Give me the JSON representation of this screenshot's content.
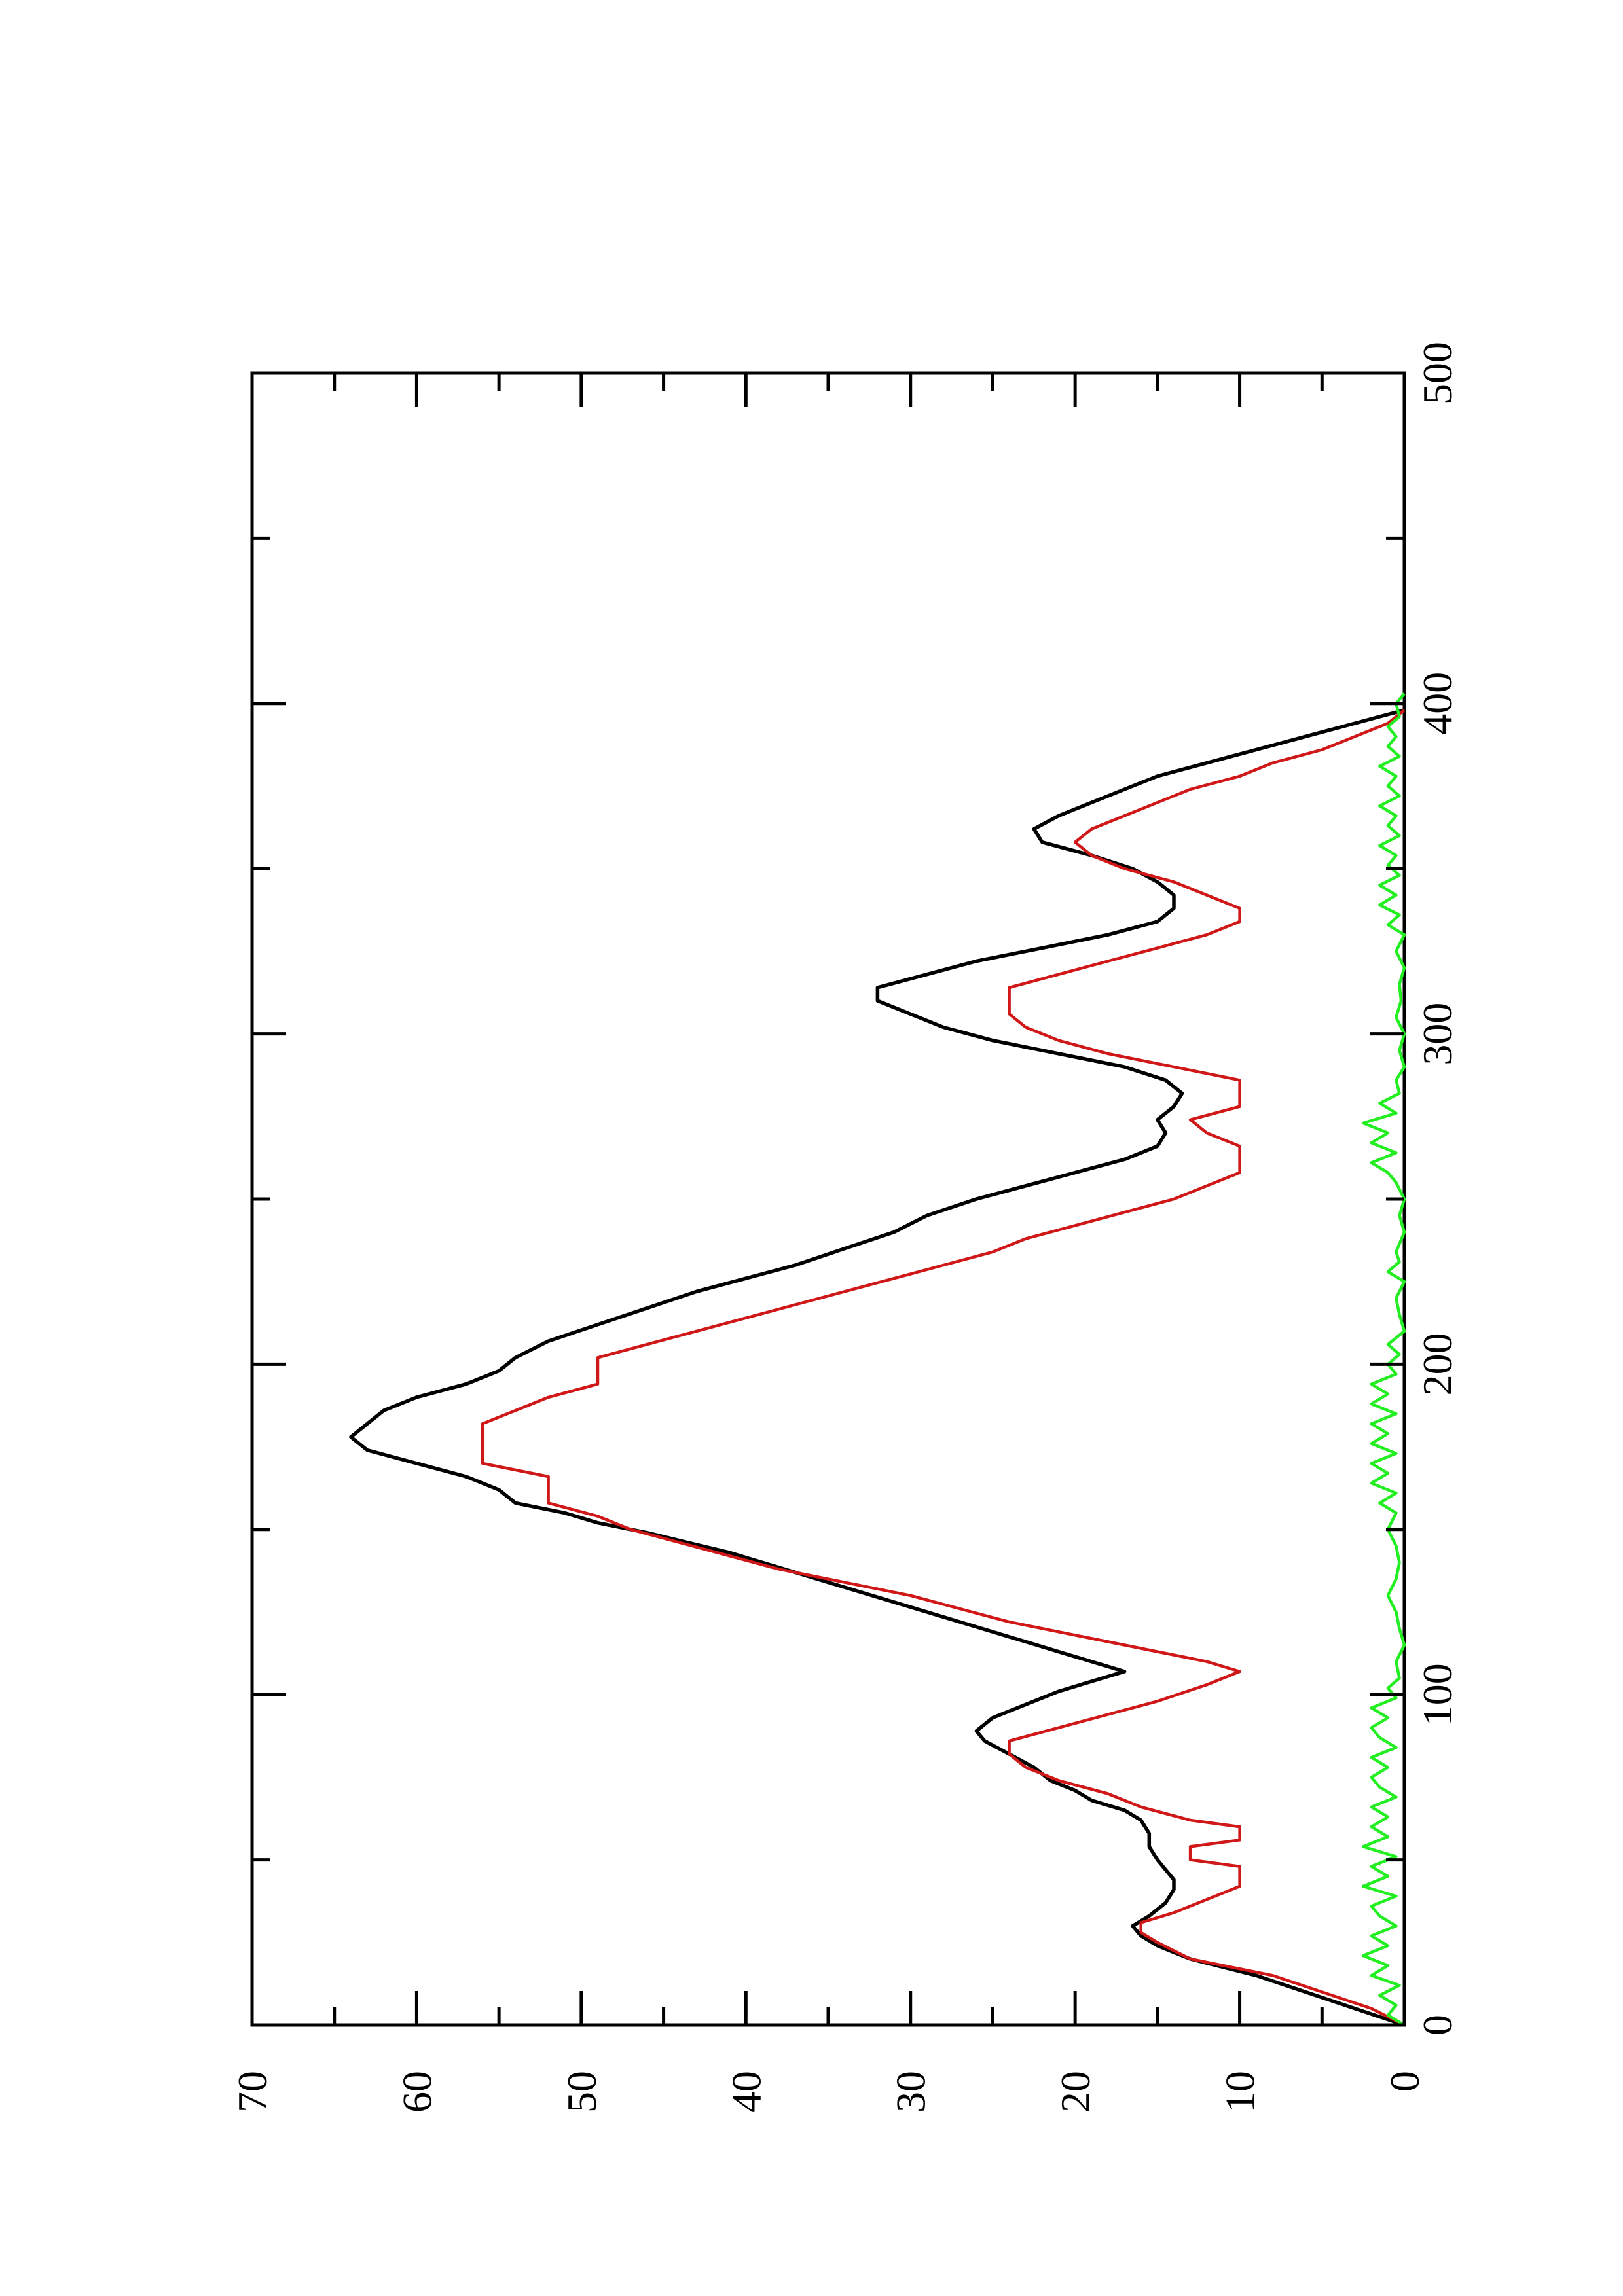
{
  "chart_data": {
    "type": "line",
    "orientation": "rotated-90-ccw",
    "title": "",
    "xlabel": "",
    "ylabel": "",
    "xlim": [
      0,
      500
    ],
    "ylim": [
      0,
      70
    ],
    "x_ticks": [
      "0",
      "100",
      "200",
      "300",
      "400",
      "500"
    ],
    "y_ticks": [
      "0",
      "10",
      "20",
      "30",
      "40",
      "50",
      "60",
      "70"
    ],
    "grid": false,
    "legend": "none",
    "series": [
      {
        "color": "#000000",
        "style": "solid",
        "points": [
          [
            0,
            0
          ],
          [
            5,
            3
          ],
          [
            10,
            6
          ],
          [
            15,
            9
          ],
          [
            20,
            13
          ],
          [
            24,
            15
          ],
          [
            27,
            16
          ],
          [
            30,
            16.5
          ],
          [
            33,
            15.5
          ],
          [
            37,
            14.5
          ],
          [
            41,
            14
          ],
          [
            44,
            14
          ],
          [
            47,
            14.5
          ],
          [
            50,
            15
          ],
          [
            54,
            15.5
          ],
          [
            58,
            15.5
          ],
          [
            62,
            16
          ],
          [
            65,
            17
          ],
          [
            68,
            19
          ],
          [
            71,
            20
          ],
          [
            74,
            21.5
          ],
          [
            78,
            22.5
          ],
          [
            82,
            24
          ],
          [
            86,
            25.5
          ],
          [
            89,
            26
          ],
          [
            93,
            25
          ],
          [
            97,
            23
          ],
          [
            101,
            21
          ],
          [
            104,
            19
          ],
          [
            107,
            17
          ],
          [
            110,
            19
          ],
          [
            113,
            21
          ],
          [
            116,
            23
          ],
          [
            119,
            25
          ],
          [
            122,
            27
          ],
          [
            125,
            29
          ],
          [
            128,
            31
          ],
          [
            131,
            33
          ],
          [
            134,
            35
          ],
          [
            137,
            37
          ],
          [
            140,
            39
          ],
          [
            143,
            41
          ],
          [
            146,
            43.5
          ],
          [
            149,
            46
          ],
          [
            152,
            49
          ],
          [
            155,
            51
          ],
          [
            158,
            54
          ],
          [
            162,
            55
          ],
          [
            166,
            57
          ],
          [
            170,
            60
          ],
          [
            174,
            63
          ],
          [
            178,
            64
          ],
          [
            182,
            63
          ],
          [
            186,
            62
          ],
          [
            190,
            60
          ],
          [
            194,
            57
          ],
          [
            198,
            55
          ],
          [
            202,
            54
          ],
          [
            207,
            52
          ],
          [
            212,
            49
          ],
          [
            217,
            46
          ],
          [
            222,
            43
          ],
          [
            226,
            40
          ],
          [
            230,
            37
          ],
          [
            235,
            34
          ],
          [
            240,
            31
          ],
          [
            245,
            29
          ],
          [
            250,
            26
          ],
          [
            254,
            23
          ],
          [
            258,
            20
          ],
          [
            262,
            17
          ],
          [
            266,
            15
          ],
          [
            270,
            14.5
          ],
          [
            274,
            15
          ],
          [
            278,
            14
          ],
          [
            282,
            13.5
          ],
          [
            286,
            14.5
          ],
          [
            290,
            17
          ],
          [
            294,
            21
          ],
          [
            298,
            25
          ],
          [
            302,
            28
          ],
          [
            306,
            30
          ],
          [
            310,
            32
          ],
          [
            314,
            32
          ],
          [
            318,
            29
          ],
          [
            322,
            26
          ],
          [
            326,
            22
          ],
          [
            330,
            18
          ],
          [
            334,
            15
          ],
          [
            338,
            14
          ],
          [
            342,
            14
          ],
          [
            346,
            15
          ],
          [
            350,
            16.5
          ],
          [
            354,
            19
          ],
          [
            358,
            22
          ],
          [
            362,
            22.5
          ],
          [
            366,
            21
          ],
          [
            370,
            19
          ],
          [
            374,
            17
          ],
          [
            378,
            15
          ],
          [
            382,
            12
          ],
          [
            386,
            9
          ],
          [
            390,
            6
          ],
          [
            394,
            3
          ],
          [
            398,
            0
          ]
        ]
      },
      {
        "color": "#d01818",
        "style": "solid-stepped",
        "points": [
          [
            0,
            0
          ],
          [
            5,
            2
          ],
          [
            10,
            5
          ],
          [
            15,
            8
          ],
          [
            20,
            13
          ],
          [
            25,
            15
          ],
          [
            28,
            16
          ],
          [
            31,
            16
          ],
          [
            34,
            14
          ],
          [
            38,
            12
          ],
          [
            42,
            10
          ],
          [
            45,
            10
          ],
          [
            48,
            10
          ],
          [
            50,
            13
          ],
          [
            54,
            13
          ],
          [
            56,
            10
          ],
          [
            60,
            10
          ],
          [
            62,
            13
          ],
          [
            66,
            16
          ],
          [
            70,
            18
          ],
          [
            74,
            21
          ],
          [
            78,
            23
          ],
          [
            82,
            24
          ],
          [
            86,
            24
          ],
          [
            90,
            21
          ],
          [
            94,
            18
          ],
          [
            98,
            15
          ],
          [
            103,
            12
          ],
          [
            107,
            10
          ],
          [
            110,
            12
          ],
          [
            114,
            16
          ],
          [
            118,
            20
          ],
          [
            122,
            24
          ],
          [
            126,
            27
          ],
          [
            130,
            30
          ],
          [
            134,
            34
          ],
          [
            138,
            38
          ],
          [
            142,
            41
          ],
          [
            146,
            44
          ],
          [
            150,
            47
          ],
          [
            154,
            49
          ],
          [
            158,
            52
          ],
          [
            162,
            52
          ],
          [
            166,
            52
          ],
          [
            170,
            56
          ],
          [
            174,
            56
          ],
          [
            178,
            56
          ],
          [
            182,
            56
          ],
          [
            186,
            54
          ],
          [
            190,
            52
          ],
          [
            194,
            49
          ],
          [
            198,
            49
          ],
          [
            202,
            49
          ],
          [
            206,
            46
          ],
          [
            210,
            43
          ],
          [
            214,
            40
          ],
          [
            218,
            37
          ],
          [
            222,
            34
          ],
          [
            226,
            31
          ],
          [
            230,
            28
          ],
          [
            234,
            25
          ],
          [
            238,
            23
          ],
          [
            242,
            20
          ],
          [
            246,
            17
          ],
          [
            250,
            14
          ],
          [
            254,
            12
          ],
          [
            258,
            10
          ],
          [
            262,
            10
          ],
          [
            266,
            10
          ],
          [
            270,
            12
          ],
          [
            274,
            13
          ],
          [
            278,
            10
          ],
          [
            282,
            10
          ],
          [
            286,
            10
          ],
          [
            290,
            14
          ],
          [
            294,
            18
          ],
          [
            298,
            21
          ],
          [
            302,
            23
          ],
          [
            306,
            24
          ],
          [
            310,
            24
          ],
          [
            314,
            24
          ],
          [
            318,
            21
          ],
          [
            322,
            18
          ],
          [
            326,
            15
          ],
          [
            330,
            12
          ],
          [
            334,
            10
          ],
          [
            338,
            10
          ],
          [
            342,
            12
          ],
          [
            346,
            14
          ],
          [
            350,
            17
          ],
          [
            354,
            19
          ],
          [
            358,
            20
          ],
          [
            362,
            19
          ],
          [
            366,
            17
          ],
          [
            370,
            15
          ],
          [
            374,
            13
          ],
          [
            378,
            10
          ],
          [
            382,
            8
          ],
          [
            386,
            5
          ],
          [
            390,
            3
          ],
          [
            394,
            1
          ],
          [
            398,
            0
          ]
        ]
      },
      {
        "color": "#22ee22",
        "style": "solid-noisy",
        "points": [
          [
            0,
            0
          ],
          [
            3,
            1
          ],
          [
            6,
            0.5
          ],
          [
            9,
            1.5
          ],
          [
            12,
            0.3
          ],
          [
            15,
            2
          ],
          [
            18,
            1
          ],
          [
            21,
            2.5
          ],
          [
            24,
            1
          ],
          [
            27,
            2
          ],
          [
            30,
            0.5
          ],
          [
            33,
            1.5
          ],
          [
            36,
            2
          ],
          [
            39,
            0.5
          ],
          [
            42,
            2.5
          ],
          [
            45,
            1
          ],
          [
            48,
            2
          ],
          [
            51,
            0.5
          ],
          [
            54,
            2.5
          ],
          [
            57,
            1
          ],
          [
            60,
            2
          ],
          [
            63,
            1
          ],
          [
            66,
            2
          ],
          [
            69,
            0.5
          ],
          [
            72,
            1.5
          ],
          [
            75,
            2
          ],
          [
            78,
            1
          ],
          [
            81,
            2
          ],
          [
            84,
            0.5
          ],
          [
            87,
            1.5
          ],
          [
            90,
            2
          ],
          [
            93,
            1
          ],
          [
            96,
            2
          ],
          [
            99,
            0.5
          ],
          [
            102,
            1
          ],
          [
            105,
            0.3
          ],
          [
            110,
            0.5
          ],
          [
            115,
            0
          ],
          [
            120,
            0.3
          ],
          [
            125,
            0.5
          ],
          [
            130,
            1
          ],
          [
            135,
            0.5
          ],
          [
            140,
            0.3
          ],
          [
            145,
            0.5
          ],
          [
            150,
            1
          ],
          [
            155,
            0.5
          ],
          [
            158,
            1.5
          ],
          [
            161,
            0.5
          ],
          [
            164,
            2
          ],
          [
            167,
            1
          ],
          [
            170,
            2
          ],
          [
            173,
            0.5
          ],
          [
            176,
            2
          ],
          [
            179,
            1
          ],
          [
            182,
            2
          ],
          [
            185,
            0.5
          ],
          [
            188,
            2
          ],
          [
            191,
            1
          ],
          [
            194,
            2
          ],
          [
            197,
            0.5
          ],
          [
            200,
            1
          ],
          [
            203,
            0.3
          ],
          [
            206,
            1
          ],
          [
            210,
            0
          ],
          [
            215,
            0.3
          ],
          [
            220,
            0.5
          ],
          [
            225,
            0
          ],
          [
            228,
            1
          ],
          [
            231,
            0.3
          ],
          [
            234,
            0.5
          ],
          [
            240,
            0
          ],
          [
            245,
            0.3
          ],
          [
            250,
            0
          ],
          [
            255,
            0.5
          ],
          [
            258,
            1
          ],
          [
            261,
            2
          ],
          [
            264,
            0.5
          ],
          [
            267,
            2
          ],
          [
            270,
            1
          ],
          [
            273,
            2.5
          ],
          [
            276,
            0.5
          ],
          [
            279,
            1.5
          ],
          [
            282,
            0.3
          ],
          [
            286,
            0.5
          ],
          [
            290,
            0
          ],
          [
            295,
            0.3
          ],
          [
            300,
            0
          ],
          [
            305,
            0.5
          ],
          [
            310,
            0.2
          ],
          [
            315,
            0.3
          ],
          [
            320,
            0
          ],
          [
            325,
            0.5
          ],
          [
            330,
            0
          ],
          [
            333,
            1
          ],
          [
            336,
            0.3
          ],
          [
            339,
            1.5
          ],
          [
            342,
            0.5
          ],
          [
            345,
            1.5
          ],
          [
            348,
            0.3
          ],
          [
            351,
            1
          ],
          [
            354,
            0.5
          ],
          [
            357,
            1.5
          ],
          [
            360,
            0.3
          ],
          [
            363,
            1
          ],
          [
            366,
            0.5
          ],
          [
            369,
            1.5
          ],
          [
            372,
            0.3
          ],
          [
            375,
            1
          ],
          [
            378,
            0.5
          ],
          [
            381,
            1.5
          ],
          [
            384,
            0.3
          ],
          [
            387,
            1
          ],
          [
            390,
            0.5
          ],
          [
            393,
            1
          ],
          [
            396,
            0.3
          ],
          [
            400,
            0.5
          ],
          [
            403,
            0
          ]
        ]
      }
    ]
  }
}
